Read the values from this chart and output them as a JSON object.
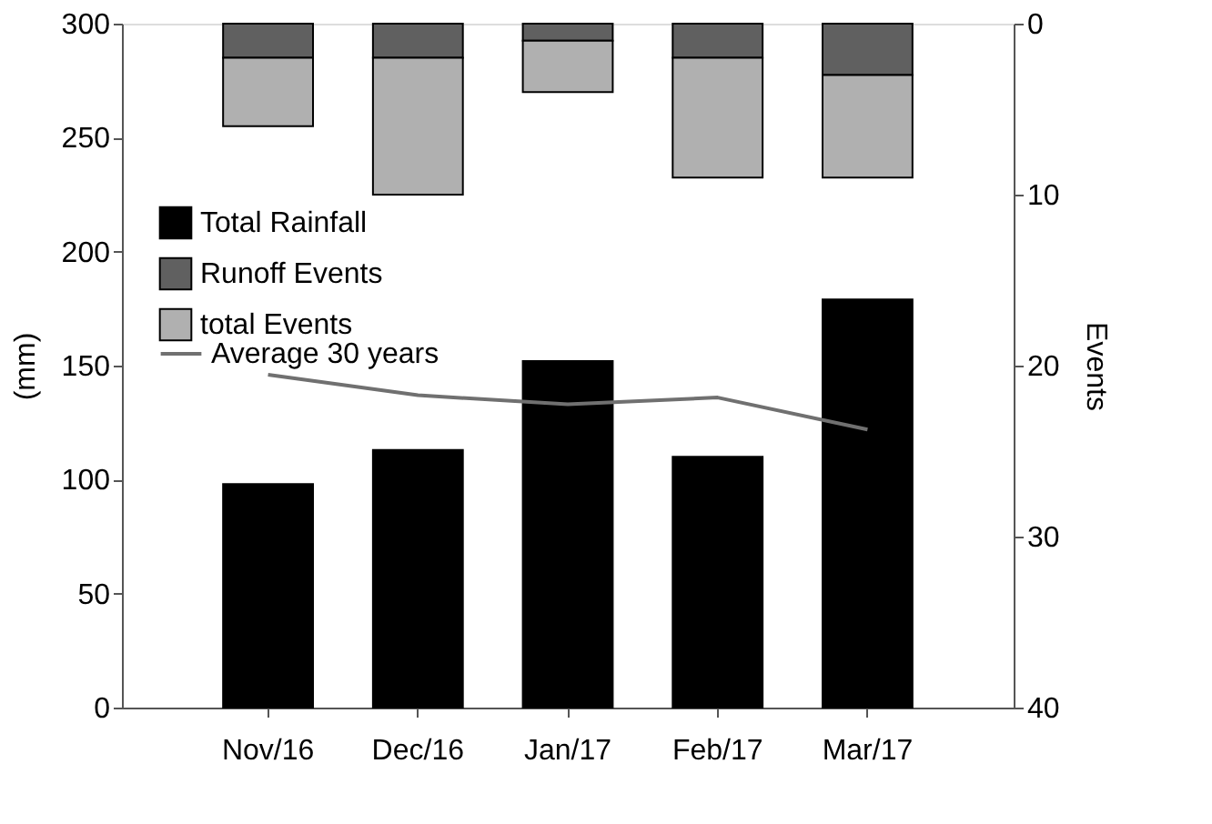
{
  "chart_data": {
    "type": "bar",
    "categories": [
      "Nov/16",
      "Dec/16",
      "Jan/17",
      "Feb/17",
      "Mar/17"
    ],
    "ylabel": "(mm)",
    "y2label": "Events",
    "ylim": [
      0,
      300
    ],
    "yticks": [
      0,
      50,
      100,
      150,
      200,
      250,
      300
    ],
    "y2lim": [
      40,
      0
    ],
    "y2ticks": [
      0,
      10,
      20,
      30,
      40
    ],
    "stacked": true,
    "grid": false,
    "legend": "top left",
    "marker": "none",
    "line_style": "solid",
    "series": [
      {
        "name": "Total Rainfall",
        "color": "#000000",
        "values": [
          98,
          113,
          152,
          110,
          179
        ]
      },
      {
        "name": "Runoff Events",
        "color": "#606060",
        "axis": "y2",
        "values": [
          2,
          2,
          1,
          2,
          3
        ]
      },
      {
        "name": "total Events",
        "color": "#b0b0b0",
        "axis": "y2",
        "values": [
          4,
          8,
          3,
          7,
          6
        ]
      },
      {
        "name": "Average 30 years",
        "type": "line",
        "color": "#707070",
        "values": [
          146,
          137,
          133,
          136,
          122
        ]
      }
    ]
  }
}
